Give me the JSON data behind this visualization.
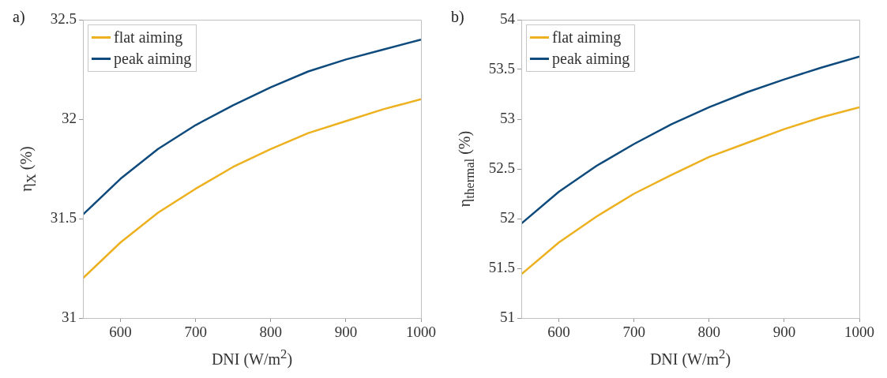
{
  "chart_data": [
    {
      "type": "line",
      "title": "a)",
      "xlabel": "DNI (W/m$^{2}$)",
      "ylabel": "η$_{X}$ (%)",
      "x": [
        550,
        600,
        650,
        700,
        750,
        800,
        850,
        900,
        950,
        1000
      ],
      "series": [
        {
          "name": "flat aiming",
          "color": "#edb120",
          "values": [
            31.2,
            31.38,
            31.53,
            31.65,
            31.76,
            31.85,
            31.93,
            31.99,
            32.05,
            32.1
          ]
        },
        {
          "name": "peak aiming",
          "color": "#0e4a7c",
          "values": [
            31.52,
            31.7,
            31.85,
            31.97,
            32.07,
            32.16,
            32.24,
            32.3,
            32.35,
            32.4
          ]
        }
      ],
      "xlim": [
        550,
        1000
      ],
      "xticks": [
        600,
        700,
        800,
        900,
        1000
      ],
      "ylim": [
        31,
        32.5
      ],
      "yticks": [
        31,
        31.5,
        32,
        32.5
      ],
      "grid": false,
      "legend": "top left",
      "marker": "none",
      "line_style": "solid"
    },
    {
      "type": "line",
      "title": "b)",
      "xlabel": "DNI (W/m$^{2}$)",
      "ylabel": "η$_{thermal}$ (%)",
      "x": [
        550,
        600,
        650,
        700,
        750,
        800,
        850,
        900,
        950,
        1000
      ],
      "series": [
        {
          "name": "flat aiming",
          "color": "#edb120",
          "values": [
            51.44,
            51.76,
            52.02,
            52.25,
            52.44,
            52.62,
            52.76,
            52.9,
            53.02,
            53.12
          ]
        },
        {
          "name": "peak aiming",
          "color": "#0e4a7c",
          "values": [
            51.95,
            52.27,
            52.53,
            52.75,
            52.95,
            53.12,
            53.27,
            53.4,
            53.52,
            53.63
          ]
        }
      ],
      "xlim": [
        550,
        1000
      ],
      "xticks": [
        600,
        700,
        800,
        900,
        1000
      ],
      "ylim": [
        51,
        54
      ],
      "yticks": [
        51,
        51.5,
        52,
        52.5,
        53,
        53.5,
        54
      ],
      "grid": false,
      "legend": "top left",
      "marker": "none",
      "line_style": "solid"
    }
  ]
}
